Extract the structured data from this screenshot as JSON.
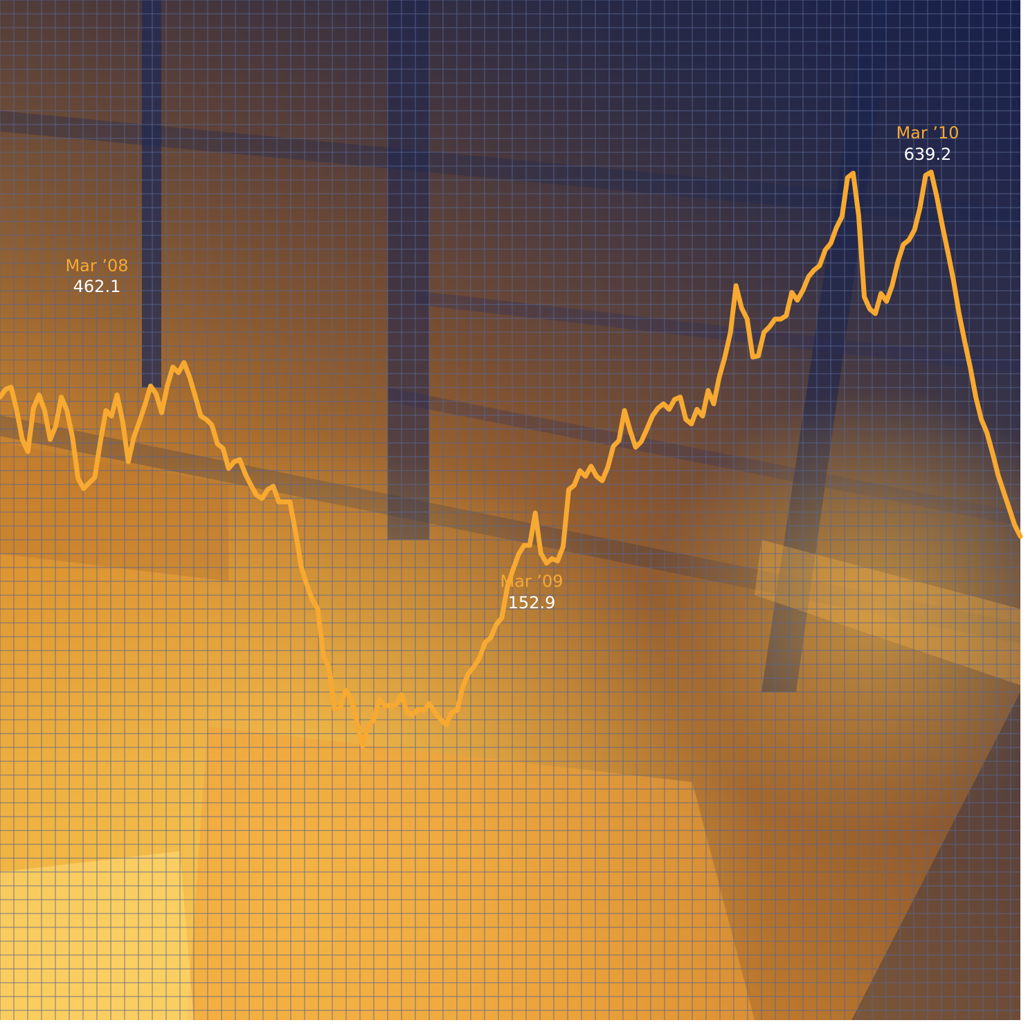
{
  "chart_data": {
    "type": "line",
    "title": "",
    "xlabel": "",
    "ylabel": "",
    "grid": true,
    "ylim": [
      100,
      700
    ],
    "series": [
      {
        "values": [
          430,
          437,
          439,
          418,
          392,
          381,
          420,
          432,
          418,
          392,
          404,
          430,
          418,
          394,
          357,
          348,
          353,
          358,
          390,
          418,
          413,
          432,
          408,
          372,
          394,
          408,
          423,
          440,
          433,
          416,
          440,
          457,
          452,
          461,
          448,
          431,
          413,
          410,
          405,
          388,
          384,
          366,
          372,
          374,
          361,
          351,
          342,
          339,
          347,
          350,
          336,
          336,
          336,
          309,
          278,
          262,
          248,
          240,
          197,
          188,
          150,
          151,
          167,
          160,
          139,
          117,
          135,
          140,
          159,
          153,
          153,
          154,
          163,
          147,
          145,
          150,
          149,
          155,
          147,
          141,
          136,
          147,
          149,
          170,
          182,
          188,
          196,
          210,
          214,
          226,
          232,
          260,
          275,
          289,
          297,
          297,
          326,
          290,
          281,
          285,
          283,
          296,
          347,
          351,
          364,
          359,
          368,
          359,
          355,
          367,
          386,
          391,
          418,
          400,
          385,
          390,
          401,
          413,
          420,
          424,
          419,
          428,
          430,
          410,
          406,
          419,
          413,
          436,
          424,
          448,
          466,
          488,
          530,
          510,
          500,
          466,
          467,
          488,
          493,
          500,
          500,
          503,
          524,
          517,
          526,
          538,
          544,
          548,
          562,
          568,
          582,
          592,
          627,
          631,
          593,
          520,
          509,
          505,
          523,
          516,
          530,
          551,
          567,
          571,
          580,
          600,
          629,
          632,
          610,
          584,
          560,
          535,
          505,
          480,
          457,
          430,
          410,
          398,
          380,
          360,
          345,
          330,
          315,
          305
        ]
      }
    ],
    "annotations": [
      {
        "period": "Mar ’08",
        "value": "462.1"
      },
      {
        "period": "Mar ’09",
        "value": "152.9"
      },
      {
        "period": "Mar ’10",
        "value": "639.2"
      }
    ]
  },
  "colors": {
    "line": "#f7a931",
    "grid": "#5a6690",
    "navy": "#182452",
    "amber": "#e9a43c",
    "bright": "#ffd35a"
  }
}
